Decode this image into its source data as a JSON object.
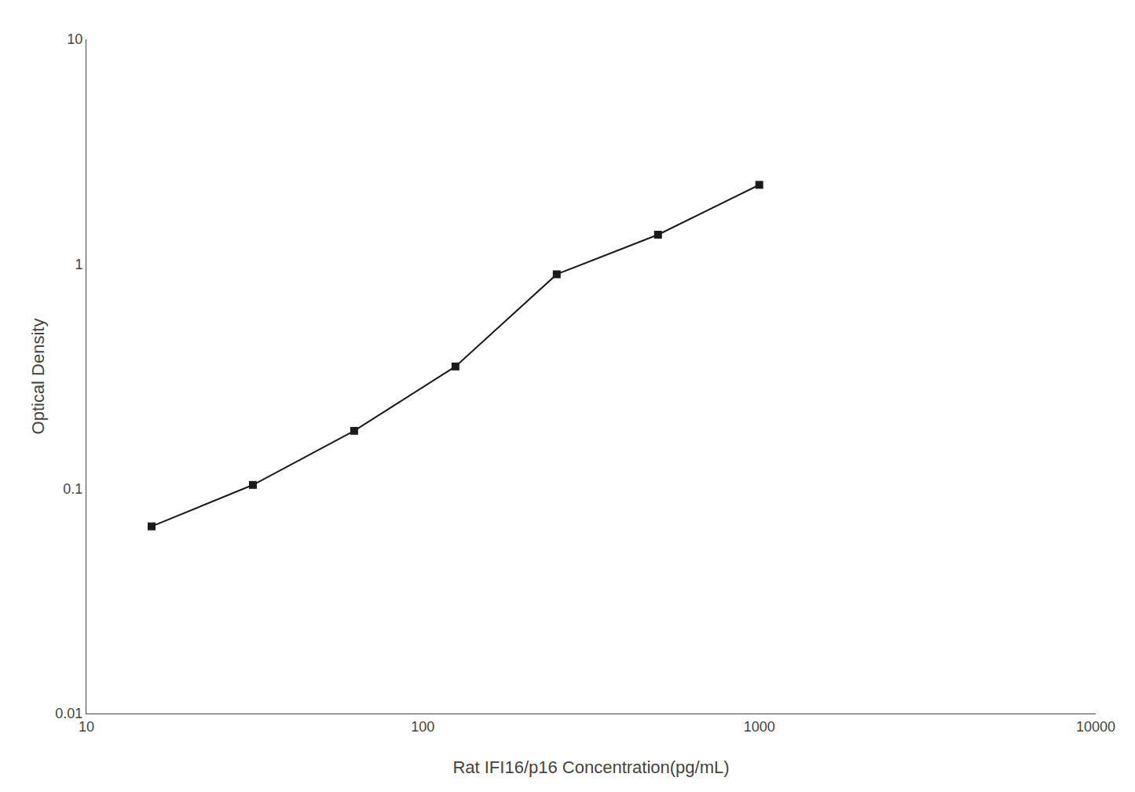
{
  "chart_data": {
    "type": "line",
    "x": [
      15.625,
      31.25,
      62.5,
      125,
      250,
      500,
      1000
    ],
    "values": [
      0.068,
      0.104,
      0.181,
      0.35,
      0.9,
      1.35,
      2.25
    ],
    "xlabel": "Rat IFI16/p16 Concentration(pg/mL)",
    "ylabel": "Optical Density",
    "xlim": [
      10,
      10000
    ],
    "ylim": [
      0.01,
      10
    ],
    "xticks": [
      10,
      100,
      1000,
      10000
    ],
    "yticks": [
      0.01,
      0.1,
      1,
      10
    ],
    "log": true,
    "grid": false,
    "color": "#1a1a1a",
    "marker": "square"
  }
}
